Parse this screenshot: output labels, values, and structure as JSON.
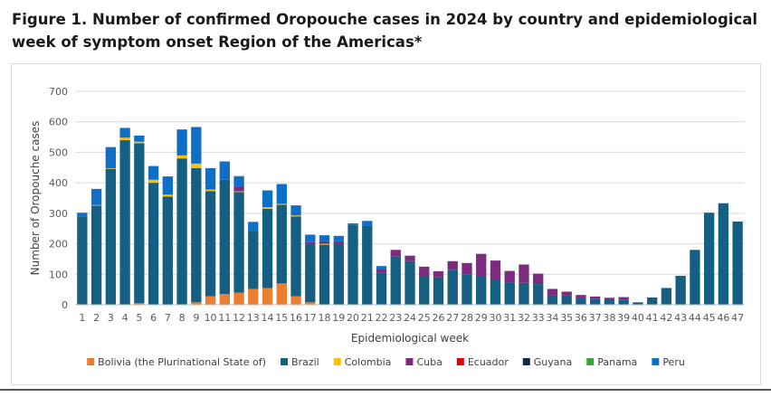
{
  "figure": {
    "title": "Figure 1. Number of confirmed Oropouche cases in 2024 by country and epidemiological week of symptom onset Region of the Americas*"
  },
  "chart_data": {
    "type": "bar",
    "stacked": true,
    "title": "",
    "xlabel": "Epidemiological week",
    "ylabel": "Number of Oropouche cases",
    "ylim": [
      0,
      700
    ],
    "yticks": [
      0,
      100,
      200,
      300,
      400,
      500,
      600,
      700
    ],
    "grid": true,
    "legend_position": "bottom",
    "categories": [
      "1",
      "2",
      "3",
      "4",
      "5",
      "6",
      "7",
      "8",
      "9",
      "10",
      "11",
      "12",
      "13",
      "14",
      "15",
      "16",
      "17",
      "18",
      "19",
      "20",
      "21",
      "22",
      "23",
      "24",
      "25",
      "26",
      "27",
      "28",
      "29",
      "30",
      "31",
      "32",
      "33",
      "34",
      "35",
      "36",
      "37",
      "38",
      "39",
      "40",
      "41",
      "42",
      "43",
      "44",
      "45",
      "46",
      "47"
    ],
    "series": [
      {
        "name": "Bolivia (the Plurinational State of)",
        "color": "#ED7D31",
        "values": [
          0,
          0,
          0,
          0,
          5,
          0,
          0,
          0,
          8,
          28,
          35,
          40,
          52,
          55,
          70,
          28,
          8,
          0,
          0,
          0,
          0,
          0,
          0,
          0,
          0,
          0,
          0,
          0,
          0,
          0,
          0,
          0,
          0,
          0,
          0,
          0,
          0,
          0,
          0,
          0,
          0,
          0,
          0,
          0,
          0,
          0,
          0
        ]
      },
      {
        "name": "Brazil",
        "color": "#156082",
        "values": [
          290,
          325,
          445,
          540,
          525,
          400,
          355,
          480,
          440,
          345,
          375,
          330,
          190,
          260,
          258,
          262,
          192,
          197,
          200,
          262,
          260,
          105,
          158,
          143,
          95,
          90,
          115,
          100,
          92,
          80,
          73,
          72,
          68,
          30,
          30,
          22,
          20,
          18,
          17,
          8,
          24,
          55,
          95,
          180,
          302,
          333,
          273
        ]
      },
      {
        "name": "Colombia",
        "color": "#FFC000",
        "values": [
          0,
          2,
          2,
          8,
          5,
          10,
          6,
          10,
          15,
          5,
          0,
          2,
          0,
          5,
          3,
          3,
          0,
          3,
          0,
          0,
          0,
          0,
          0,
          0,
          0,
          0,
          0,
          0,
          0,
          0,
          0,
          0,
          0,
          0,
          0,
          0,
          0,
          0,
          0,
          0,
          0,
          0,
          0,
          0,
          0,
          0,
          0
        ]
      },
      {
        "name": "Cuba",
        "color": "#7B2C7E",
        "values": [
          0,
          0,
          0,
          0,
          0,
          0,
          0,
          0,
          0,
          0,
          0,
          15,
          0,
          0,
          0,
          0,
          5,
          8,
          8,
          0,
          0,
          12,
          22,
          18,
          30,
          20,
          28,
          37,
          75,
          65,
          38,
          60,
          34,
          22,
          13,
          10,
          7,
          5,
          8,
          0,
          0,
          0,
          0,
          0,
          0,
          0,
          0
        ]
      },
      {
        "name": "Ecuador",
        "color": "#E00000",
        "values": [
          0,
          0,
          0,
          0,
          0,
          0,
          0,
          0,
          0,
          0,
          0,
          0,
          0,
          0,
          0,
          0,
          0,
          0,
          0,
          0,
          0,
          0,
          0,
          0,
          0,
          0,
          0,
          0,
          0,
          0,
          0,
          0,
          0,
          0,
          0,
          0,
          0,
          0,
          0,
          0,
          0,
          0,
          0,
          0,
          0,
          0,
          0
        ]
      },
      {
        "name": "Guyana",
        "color": "#0D2A4A",
        "values": [
          0,
          0,
          0,
          0,
          0,
          0,
          0,
          0,
          0,
          0,
          0,
          0,
          0,
          0,
          0,
          0,
          0,
          0,
          0,
          0,
          0,
          0,
          0,
          0,
          0,
          0,
          0,
          0,
          0,
          0,
          0,
          0,
          0,
          0,
          0,
          0,
          0,
          0,
          0,
          0,
          0,
          0,
          0,
          0,
          0,
          0,
          0
        ]
      },
      {
        "name": "Panama",
        "color": "#3BA53B",
        "values": [
          0,
          0,
          0,
          0,
          0,
          0,
          0,
          0,
          0,
          0,
          0,
          0,
          0,
          0,
          0,
          0,
          0,
          0,
          0,
          0,
          0,
          0,
          0,
          0,
          0,
          0,
          0,
          0,
          0,
          0,
          0,
          0,
          0,
          0,
          0,
          0,
          0,
          0,
          0,
          0,
          0,
          0,
          0,
          0,
          0,
          0,
          0
        ]
      },
      {
        "name": "Peru",
        "color": "#0F6FC6",
        "values": [
          12,
          53,
          70,
          32,
          20,
          45,
          60,
          85,
          120,
          70,
          60,
          35,
          30,
          55,
          65,
          33,
          25,
          20,
          18,
          5,
          15,
          10,
          0,
          0,
          0,
          0,
          0,
          0,
          0,
          0,
          0,
          0,
          0,
          0,
          0,
          0,
          0,
          0,
          0,
          0,
          0,
          0,
          0,
          0,
          0,
          0,
          0
        ]
      }
    ]
  }
}
